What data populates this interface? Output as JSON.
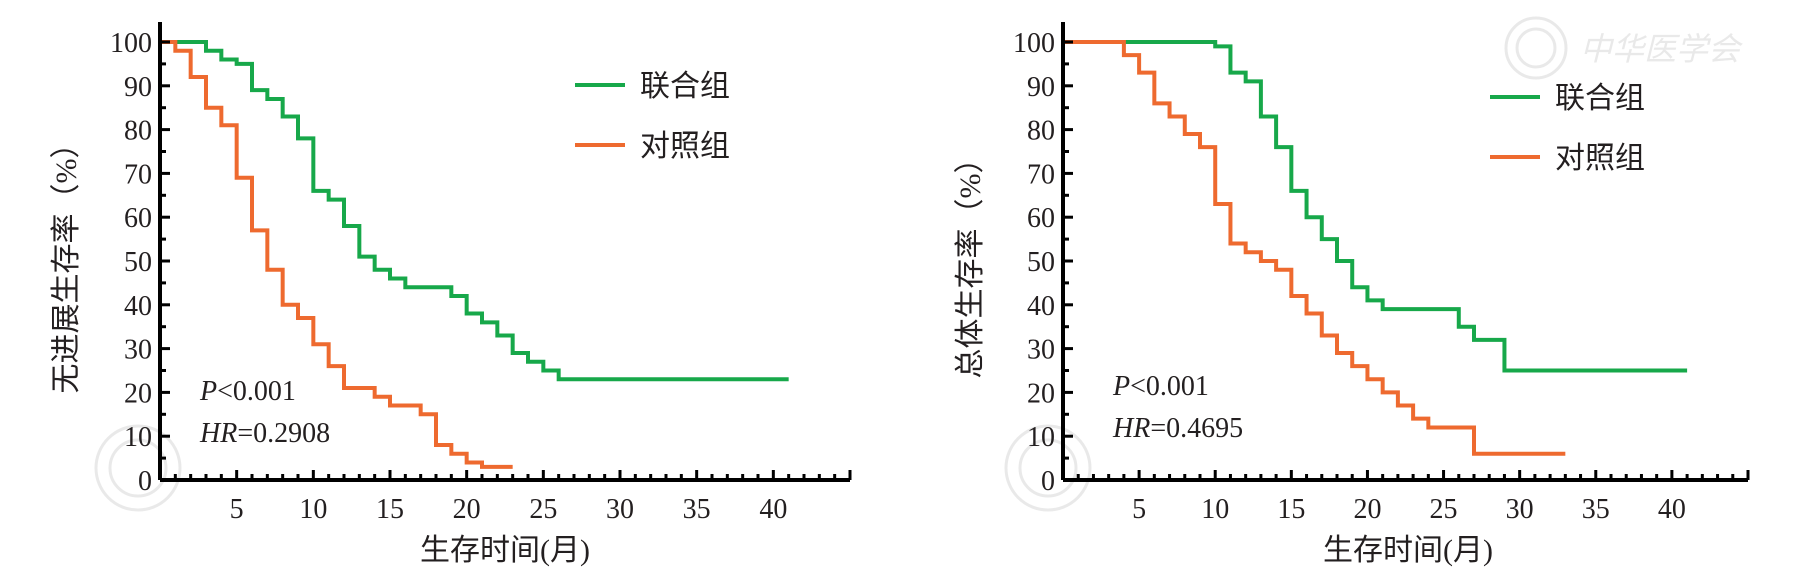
{
  "colors": {
    "combination": "#17a84a",
    "control": "#ee6a2f",
    "axis": "#000000",
    "text": "#231f20"
  },
  "watermark": {
    "text": "中华医学会",
    "icon": "chinese-medical-association-seal-icon"
  },
  "chart_data": [
    {
      "type": "line",
      "step": true,
      "ylabel": "无进展生存率（%）",
      "xlabel": "生存时间(月)",
      "xlim": [
        0,
        45
      ],
      "ylim": [
        0,
        100
      ],
      "xticks": [
        5,
        10,
        15,
        20,
        25,
        30,
        35,
        40
      ],
      "yticks": [
        0,
        10,
        20,
        30,
        40,
        50,
        60,
        70,
        80,
        90,
        100
      ],
      "legend_position": "top-right",
      "annotations": {
        "p_label": "P",
        "p_value": "<0.001",
        "hr_label": "HR",
        "hr_value": "=0.2908"
      },
      "series": [
        {
          "name": "联合组",
          "x": [
            0,
            3,
            4,
            5,
            6,
            7,
            8,
            9,
            10,
            11,
            12,
            13,
            14,
            15,
            16,
            17,
            18,
            19,
            20,
            21,
            22,
            23,
            24,
            25,
            26,
            41
          ],
          "y": [
            100,
            98,
            96,
            95,
            89,
            87,
            83,
            78,
            66,
            64,
            58,
            51,
            48,
            46,
            44,
            44,
            44,
            42,
            38,
            36,
            33,
            29,
            27,
            25,
            23,
            23
          ]
        },
        {
          "name": "对照组",
          "x": [
            0,
            1,
            2,
            3,
            4,
            5,
            6,
            7,
            8,
            9,
            10,
            11,
            12,
            13,
            14,
            15,
            16,
            17,
            18,
            19,
            20,
            21,
            22,
            23
          ],
          "y": [
            100,
            98,
            92,
            85,
            81,
            69,
            57,
            48,
            40,
            37,
            31,
            26,
            21,
            21,
            19,
            17,
            17,
            15,
            8,
            6,
            4,
            3,
            3,
            3
          ]
        }
      ]
    },
    {
      "type": "line",
      "step": true,
      "ylabel": "总体生存率（%）",
      "xlabel": "生存时间(月)",
      "xlim": [
        0,
        45
      ],
      "ylim": [
        0,
        100
      ],
      "xticks": [
        5,
        10,
        15,
        20,
        25,
        30,
        35,
        40
      ],
      "yticks": [
        0,
        10,
        20,
        30,
        40,
        50,
        60,
        70,
        80,
        90,
        100
      ],
      "legend_position": "top-right",
      "annotations": {
        "p_label": "P",
        "p_value": "<0.001",
        "hr_label": "HR",
        "hr_value": "=0.4695"
      },
      "series": [
        {
          "name": "联合组",
          "x": [
            0,
            10,
            11,
            12,
            13,
            14,
            15,
            16,
            17,
            18,
            19,
            20,
            21,
            23,
            26,
            27,
            29,
            41
          ],
          "y": [
            100,
            99,
            93,
            91,
            83,
            76,
            66,
            60,
            55,
            50,
            44,
            41,
            39,
            39,
            35,
            32,
            25,
            25
          ]
        },
        {
          "name": "对照组",
          "x": [
            0,
            4,
            5,
            6,
            7,
            8,
            9,
            10,
            11,
            12,
            13,
            14,
            15,
            16,
            17,
            18,
            19,
            20,
            21,
            22,
            23,
            24,
            27,
            33
          ],
          "y": [
            100,
            97,
            93,
            86,
            83,
            79,
            76,
            63,
            54,
            52,
            50,
            48,
            42,
            38,
            33,
            29,
            26,
            23,
            20,
            17,
            14,
            12,
            6,
            6
          ]
        }
      ]
    }
  ]
}
